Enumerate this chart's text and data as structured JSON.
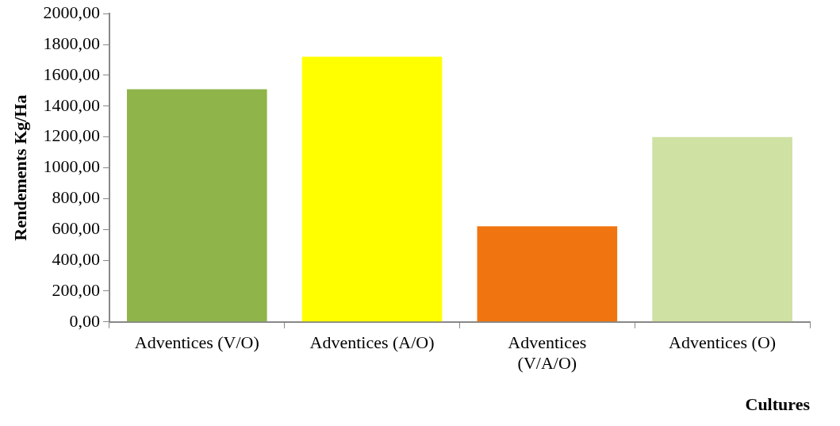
{
  "chart_data": {
    "type": "bar",
    "xlabel": "Cultures",
    "ylabel": "Rendements Kg/Ha",
    "categories": [
      "Adventices (V/O)",
      "Adventices (A/O)",
      "Adventices (V/A/O)",
      "Adventices (O)"
    ],
    "values": [
      1510,
      1720,
      620,
      1200
    ],
    "colors": [
      "#8fb44a",
      "#ffff00",
      "#f07511",
      "#cfe1a3"
    ],
    "ylim": [
      0,
      2000
    ],
    "yticks": [
      {
        "value": 0,
        "label": "0,00"
      },
      {
        "value": 200,
        "label": "200,00"
      },
      {
        "value": 400,
        "label": "400,00"
      },
      {
        "value": 600,
        "label": "600,00"
      },
      {
        "value": 800,
        "label": "800,00"
      },
      {
        "value": 1000,
        "label": "1000,00"
      },
      {
        "value": 1200,
        "label": "1200,00"
      },
      {
        "value": 1400,
        "label": "1400,00"
      },
      {
        "value": 1600,
        "label": "1600,00"
      },
      {
        "value": 1800,
        "label": "1800,00"
      },
      {
        "value": 2000,
        "label": "2000,00"
      }
    ],
    "grid": false,
    "legend": false
  }
}
